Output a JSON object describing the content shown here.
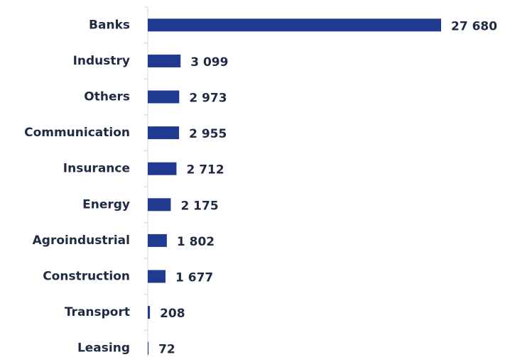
{
  "chart_data": {
    "type": "barh",
    "categories": [
      "Banks",
      "Industry",
      "Others",
      "Communication",
      "Insurance",
      "Energy",
      "Agroindustrial",
      "Construction",
      "Transport",
      "Leasing"
    ],
    "values": [
      27680,
      3099,
      2973,
      2955,
      2712,
      2175,
      1802,
      1677,
      208,
      72
    ],
    "value_labels": [
      "27 680",
      "3 099",
      "2 973",
      "2 955",
      "2 712",
      "2 175",
      "1 802",
      "1 677",
      "208",
      "72"
    ],
    "color": "#1f3a8f"
  }
}
